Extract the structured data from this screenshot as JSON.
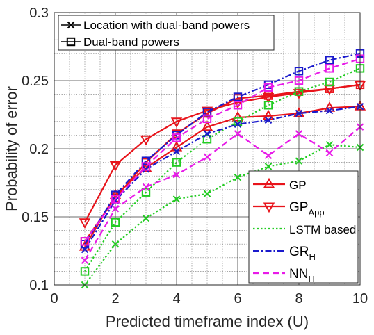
{
  "chart_data": {
    "type": "line",
    "xlabel": "Predicted timeframe index (U)",
    "ylabel": "Probability of error",
    "xlim": [
      0,
      10
    ],
    "ylim": [
      0.1,
      0.3
    ],
    "x_ticks": [
      "0",
      "2",
      "4",
      "6",
      "8",
      "10"
    ],
    "y_ticks": [
      "0.1",
      "0.15",
      "0.2",
      "0.25",
      "0.3"
    ],
    "grid": true,
    "x": [
      1,
      2,
      3,
      4,
      5,
      6,
      7,
      8,
      9,
      10
    ],
    "series": [
      {
        "name": "GP",
        "method": "GP",
        "feature": "location",
        "color": "#e8141b",
        "dash": "solid",
        "marker": "triangle-up",
        "values": [
          0.128,
          0.166,
          0.186,
          0.201,
          0.216,
          0.223,
          0.224,
          0.226,
          0.23,
          0.231
        ]
      },
      {
        "name": "GP",
        "method": "GP",
        "feature": "dual-band",
        "color": "#e8141b",
        "dash": "solid",
        "marker": "square",
        "values": [
          0.132,
          0.164,
          0.19,
          0.211,
          0.226,
          0.237,
          0.239,
          0.242,
          0.244,
          0.247
        ]
      },
      {
        "name": "GP_App",
        "method": "GP_App",
        "feature": "location",
        "color": "#e8141b",
        "dash": "solid",
        "marker": "triangle-down",
        "values": [
          0.146,
          0.188,
          0.207,
          0.22,
          0.228,
          0.234,
          0.238,
          0.241,
          0.244,
          0.247
        ]
      },
      {
        "name": "LSTM based",
        "method": "LSTM based",
        "feature": "location",
        "color": "#22cc22",
        "dash": "dotted",
        "marker": "x",
        "values": [
          0.1,
          0.13,
          0.149,
          0.163,
          0.167,
          0.179,
          0.187,
          0.191,
          0.203,
          0.201
        ]
      },
      {
        "name": "LSTM based",
        "method": "LSTM based",
        "feature": "dual-band",
        "color": "#22cc22",
        "dash": "dotted",
        "marker": "square",
        "values": [
          0.11,
          0.146,
          0.168,
          0.19,
          0.207,
          0.22,
          0.232,
          0.242,
          0.249,
          0.259
        ]
      },
      {
        "name": "GR_H",
        "method": "GR_H",
        "feature": "location",
        "color": "#1a1acc",
        "dash": "dashdot",
        "marker": "x",
        "values": [
          0.126,
          0.162,
          0.185,
          0.198,
          0.211,
          0.218,
          0.221,
          0.226,
          0.228,
          0.231
        ]
      },
      {
        "name": "GR_H",
        "method": "GR_H",
        "feature": "dual-band",
        "color": "#1a1acc",
        "dash": "dashdot",
        "marker": "square",
        "values": [
          0.13,
          0.166,
          0.191,
          0.21,
          0.227,
          0.238,
          0.247,
          0.257,
          0.265,
          0.27
        ]
      },
      {
        "name": "NN_H",
        "method": "NN_H",
        "feature": "location",
        "color": "#e81ae8",
        "dash": "dashed",
        "marker": "x",
        "values": [
          0.118,
          0.156,
          0.172,
          0.181,
          0.194,
          0.211,
          0.195,
          0.211,
          0.197,
          0.216
        ]
      },
      {
        "name": "NN_H",
        "method": "NN_H",
        "feature": "dual-band",
        "color": "#e81ae8",
        "dash": "dashed",
        "marker": "square",
        "values": [
          0.132,
          0.163,
          0.187,
          0.208,
          0.222,
          0.232,
          0.245,
          0.25,
          0.259,
          0.266
        ]
      }
    ],
    "legend_feature": [
      {
        "label": "Location with dual-band powers",
        "marker": "x"
      },
      {
        "label": "Dual-band powers",
        "marker": "square"
      }
    ],
    "legend_feature_placement": "top-left",
    "legend_methods": [
      {
        "base": "GP",
        "sub": "",
        "color": "#e8141b",
        "dash": "solid",
        "marker": "triangle-up"
      },
      {
        "base": "GP",
        "sub": "App",
        "color": "#e8141b",
        "dash": "solid",
        "marker": "triangle-down"
      },
      {
        "base": "LSTM based",
        "sub": "",
        "color": "#22cc22",
        "dash": "dotted",
        "marker": "none"
      },
      {
        "base": "GR",
        "sub": "H",
        "color": "#1a1acc",
        "dash": "dashdot",
        "marker": "none"
      },
      {
        "base": "NN",
        "sub": "H",
        "color": "#e81ae8",
        "dash": "dashed",
        "marker": "none"
      }
    ],
    "legend_methods_placement": "bottom-right"
  }
}
